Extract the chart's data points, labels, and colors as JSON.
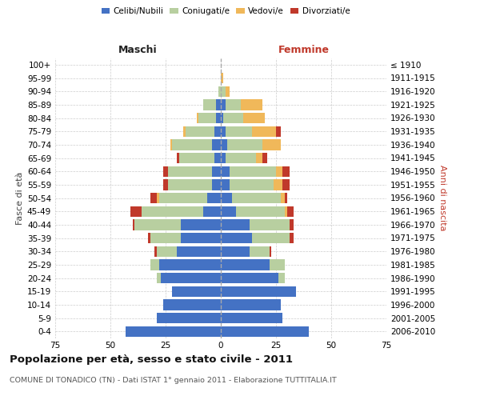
{
  "age_groups": [
    "0-4",
    "5-9",
    "10-14",
    "15-19",
    "20-24",
    "25-29",
    "30-34",
    "35-39",
    "40-44",
    "45-49",
    "50-54",
    "55-59",
    "60-64",
    "65-69",
    "70-74",
    "75-79",
    "80-84",
    "85-89",
    "90-94",
    "95-99",
    "100+"
  ],
  "birth_years": [
    "2006-2010",
    "2001-2005",
    "1996-2000",
    "1991-1995",
    "1986-1990",
    "1981-1985",
    "1976-1980",
    "1971-1975",
    "1966-1970",
    "1961-1965",
    "1956-1960",
    "1951-1955",
    "1946-1950",
    "1941-1945",
    "1936-1940",
    "1931-1935",
    "1926-1930",
    "1921-1925",
    "1916-1920",
    "1911-1915",
    "≤ 1910"
  ],
  "males_celibi": [
    43,
    29,
    26,
    22,
    27,
    28,
    20,
    18,
    18,
    8,
    6,
    4,
    4,
    3,
    4,
    3,
    2,
    2,
    0,
    0,
    0
  ],
  "males_coniugati": [
    0,
    0,
    0,
    0,
    2,
    4,
    9,
    14,
    21,
    28,
    22,
    20,
    20,
    16,
    18,
    13,
    8,
    6,
    1,
    0,
    0
  ],
  "males_vedovi": [
    0,
    0,
    0,
    0,
    0,
    0,
    0,
    0,
    0,
    0,
    1,
    0,
    0,
    0,
    1,
    1,
    1,
    0,
    0,
    0,
    0
  ],
  "males_divorziati": [
    0,
    0,
    0,
    0,
    0,
    0,
    1,
    1,
    1,
    5,
    3,
    2,
    2,
    1,
    0,
    0,
    0,
    0,
    0,
    0,
    0
  ],
  "fem_nubili": [
    40,
    28,
    27,
    34,
    26,
    22,
    13,
    14,
    13,
    7,
    5,
    4,
    4,
    2,
    3,
    2,
    1,
    2,
    0,
    0,
    0
  ],
  "fem_coniugate": [
    0,
    0,
    0,
    0,
    3,
    7,
    9,
    17,
    18,
    22,
    22,
    20,
    21,
    14,
    16,
    12,
    9,
    7,
    2,
    0,
    0
  ],
  "fem_vedove": [
    0,
    0,
    0,
    0,
    0,
    0,
    0,
    0,
    0,
    1,
    2,
    4,
    3,
    3,
    8,
    11,
    10,
    10,
    2,
    1,
    0
  ],
  "fem_divorziate": [
    0,
    0,
    0,
    0,
    0,
    0,
    1,
    2,
    2,
    3,
    1,
    3,
    3,
    2,
    0,
    2,
    0,
    0,
    0,
    0,
    0
  ],
  "color_celibi": "#4472c4",
  "color_coniugati": "#b8cfa0",
  "color_vedovi": "#f0b85a",
  "color_divorziati": "#c0392b",
  "title": "Popolazione per età, sesso e stato civile - 2011",
  "subtitle": "COMUNE DI TONADICO (TN) - Dati ISTAT 1° gennaio 2011 - Elaborazione TUTTITALIA.IT",
  "label_maschi": "Maschi",
  "label_femmine": "Femmine",
  "ylabel_left": "Fasce di età",
  "ylabel_right": "Anni di nascita",
  "legend_labels": [
    "Celibi/Nubili",
    "Coniugati/e",
    "Vedovi/e",
    "Divorziati/e"
  ],
  "xlim": 75,
  "bg_color": "#ffffff",
  "grid_color": "#cccccc"
}
